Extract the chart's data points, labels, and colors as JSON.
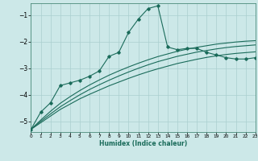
{
  "xlabel": "Humidex (Indice chaleur)",
  "bg_color": "#cce8e8",
  "grid_color": "#aacfcf",
  "line_color": "#1a6b5a",
  "xlim": [
    0,
    23
  ],
  "ylim": [
    -5.4,
    -0.55
  ],
  "yticks": [
    -5,
    -4,
    -3,
    -2,
    -1
  ],
  "xticks": [
    0,
    1,
    2,
    3,
    4,
    5,
    6,
    7,
    8,
    9,
    10,
    11,
    12,
    13,
    14,
    15,
    16,
    17,
    18,
    19,
    20,
    21,
    22,
    23
  ],
  "series": {
    "main": {
      "x": [
        0,
        1,
        2,
        3,
        4,
        5,
        6,
        7,
        8,
        9,
        10,
        11,
        12,
        13,
        14,
        15,
        16,
        17,
        18,
        19,
        20,
        21,
        22,
        23
      ],
      "y": [
        -5.3,
        -4.65,
        -4.3,
        -3.65,
        -3.55,
        -3.45,
        -3.3,
        -3.1,
        -2.55,
        -2.4,
        -1.65,
        -1.15,
        -0.75,
        -0.65,
        -2.2,
        -2.3,
        -2.25,
        -2.25,
        -2.4,
        -2.5,
        -2.6,
        -2.65,
        -2.65,
        -2.6
      ]
    },
    "line1": {
      "x": [
        0,
        1,
        2,
        3,
        4,
        5,
        6,
        7,
        8,
        9,
        10,
        11,
        12,
        13,
        14,
        15,
        16,
        17,
        18,
        19,
        20,
        21,
        22,
        23
      ],
      "y": [
        -5.3,
        -5.05,
        -4.8,
        -4.55,
        -4.35,
        -4.15,
        -3.98,
        -3.82,
        -3.66,
        -3.52,
        -3.38,
        -3.25,
        -3.13,
        -3.02,
        -2.92,
        -2.82,
        -2.74,
        -2.66,
        -2.59,
        -2.53,
        -2.48,
        -2.44,
        -2.41,
        -2.38
      ]
    },
    "line2": {
      "x": [
        0,
        1,
        2,
        3,
        4,
        5,
        6,
        7,
        8,
        9,
        10,
        11,
        12,
        13,
        14,
        15,
        16,
        17,
        18,
        19,
        20,
        21,
        22,
        23
      ],
      "y": [
        -5.3,
        -5.0,
        -4.72,
        -4.45,
        -4.22,
        -4.0,
        -3.8,
        -3.62,
        -3.45,
        -3.29,
        -3.14,
        -3.0,
        -2.87,
        -2.75,
        -2.65,
        -2.55,
        -2.47,
        -2.39,
        -2.33,
        -2.27,
        -2.22,
        -2.18,
        -2.15,
        -2.12
      ]
    },
    "line3": {
      "x": [
        0,
        1,
        2,
        3,
        4,
        5,
        6,
        7,
        8,
        9,
        10,
        11,
        12,
        13,
        14,
        15,
        16,
        17,
        18,
        19,
        20,
        21,
        22,
        23
      ],
      "y": [
        -5.3,
        -4.95,
        -4.62,
        -4.32,
        -4.07,
        -3.84,
        -3.63,
        -3.44,
        -3.26,
        -3.1,
        -2.95,
        -2.81,
        -2.68,
        -2.56,
        -2.46,
        -2.36,
        -2.28,
        -2.21,
        -2.15,
        -2.09,
        -2.05,
        -2.01,
        -1.98,
        -1.96
      ]
    }
  }
}
